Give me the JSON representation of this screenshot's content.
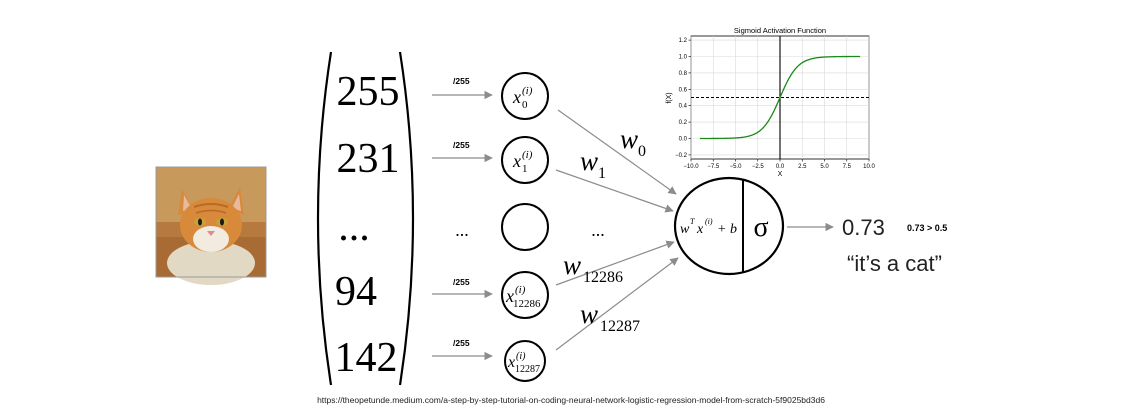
{
  "input_vector": {
    "values": [
      "255",
      "231",
      "...",
      "94",
      "142"
    ]
  },
  "normalize_label": "/255",
  "neurons": [
    {
      "label": "x",
      "subscript": "0",
      "superscript": "(i)"
    },
    {
      "label": "x",
      "subscript": "1",
      "superscript": "(i)"
    },
    {
      "label": "",
      "subscript": "",
      "superscript": ""
    },
    {
      "label": "x",
      "subscript": "12286",
      "superscript": "(i)"
    },
    {
      "label": "x",
      "subscript": "12287",
      "superscript": "(i)"
    }
  ],
  "ellipsis": "...",
  "weights": [
    {
      "label": "w",
      "subscript": "0"
    },
    {
      "label": "w",
      "subscript": "1"
    },
    {
      "label": "w",
      "subscript": "12286"
    },
    {
      "label": "w",
      "subscript": "12287"
    }
  ],
  "output_node": {
    "linear_w": "w",
    "linear_T": "T",
    "linear_x": "x",
    "linear_i": "(i)",
    "linear_plus_b": "+ b",
    "activation_symbol": "σ"
  },
  "output": {
    "value": "0.73",
    "threshold_note": "0.73 > 0.5",
    "conclusion": "“it’s a cat”"
  },
  "chart_data": {
    "type": "line",
    "title": "Sigmoid Activation Function",
    "xlabel": "X",
    "ylabel": "f(X)",
    "xlim": [
      -10.0,
      10.0
    ],
    "ylim": [
      -0.25,
      1.25
    ],
    "xticks": [
      "−10.0",
      "−7.5",
      "−5.0",
      "−2.5",
      "0.0",
      "2.5",
      "5.0",
      "7.5",
      "10.0"
    ],
    "yticks": [
      "−0.2",
      "0.0",
      "0.2",
      "0.4",
      "0.6",
      "0.8",
      "1.0",
      "1.2"
    ],
    "xtick_values": [
      -10,
      -7.5,
      -5,
      -2.5,
      0,
      2.5,
      5,
      7.5,
      10
    ],
    "ytick_values": [
      -0.2,
      0,
      0.2,
      0.4,
      0.6,
      0.8,
      1.0,
      1.2
    ],
    "grid": true,
    "series": [
      {
        "function": "sigmoid",
        "x_range": [
          -9,
          9
        ],
        "color": "#1a8a1a"
      }
    ],
    "reference_lines": [
      {
        "orientation": "horizontal",
        "y": 0.5,
        "style": "dashed",
        "color": "#000000"
      },
      {
        "orientation": "vertical",
        "x": 0,
        "style": "solid",
        "color": "#000000"
      }
    ]
  },
  "source_url": "https://theopetunde.medium.com/a-step-by-step-tutorial-on-coding-neural-network-logistic-regression-model-from-scratch-5f9025bd3d6",
  "colors": {
    "arrow": "#8c8c8c",
    "stroke": "#000000",
    "curve": "#1a8a1a",
    "grid": "#d9d9d9",
    "fur_orange": "#d9893a",
    "background": "#ffffff"
  },
  "icons": {
    "cat_photo": "cat-photo"
  }
}
